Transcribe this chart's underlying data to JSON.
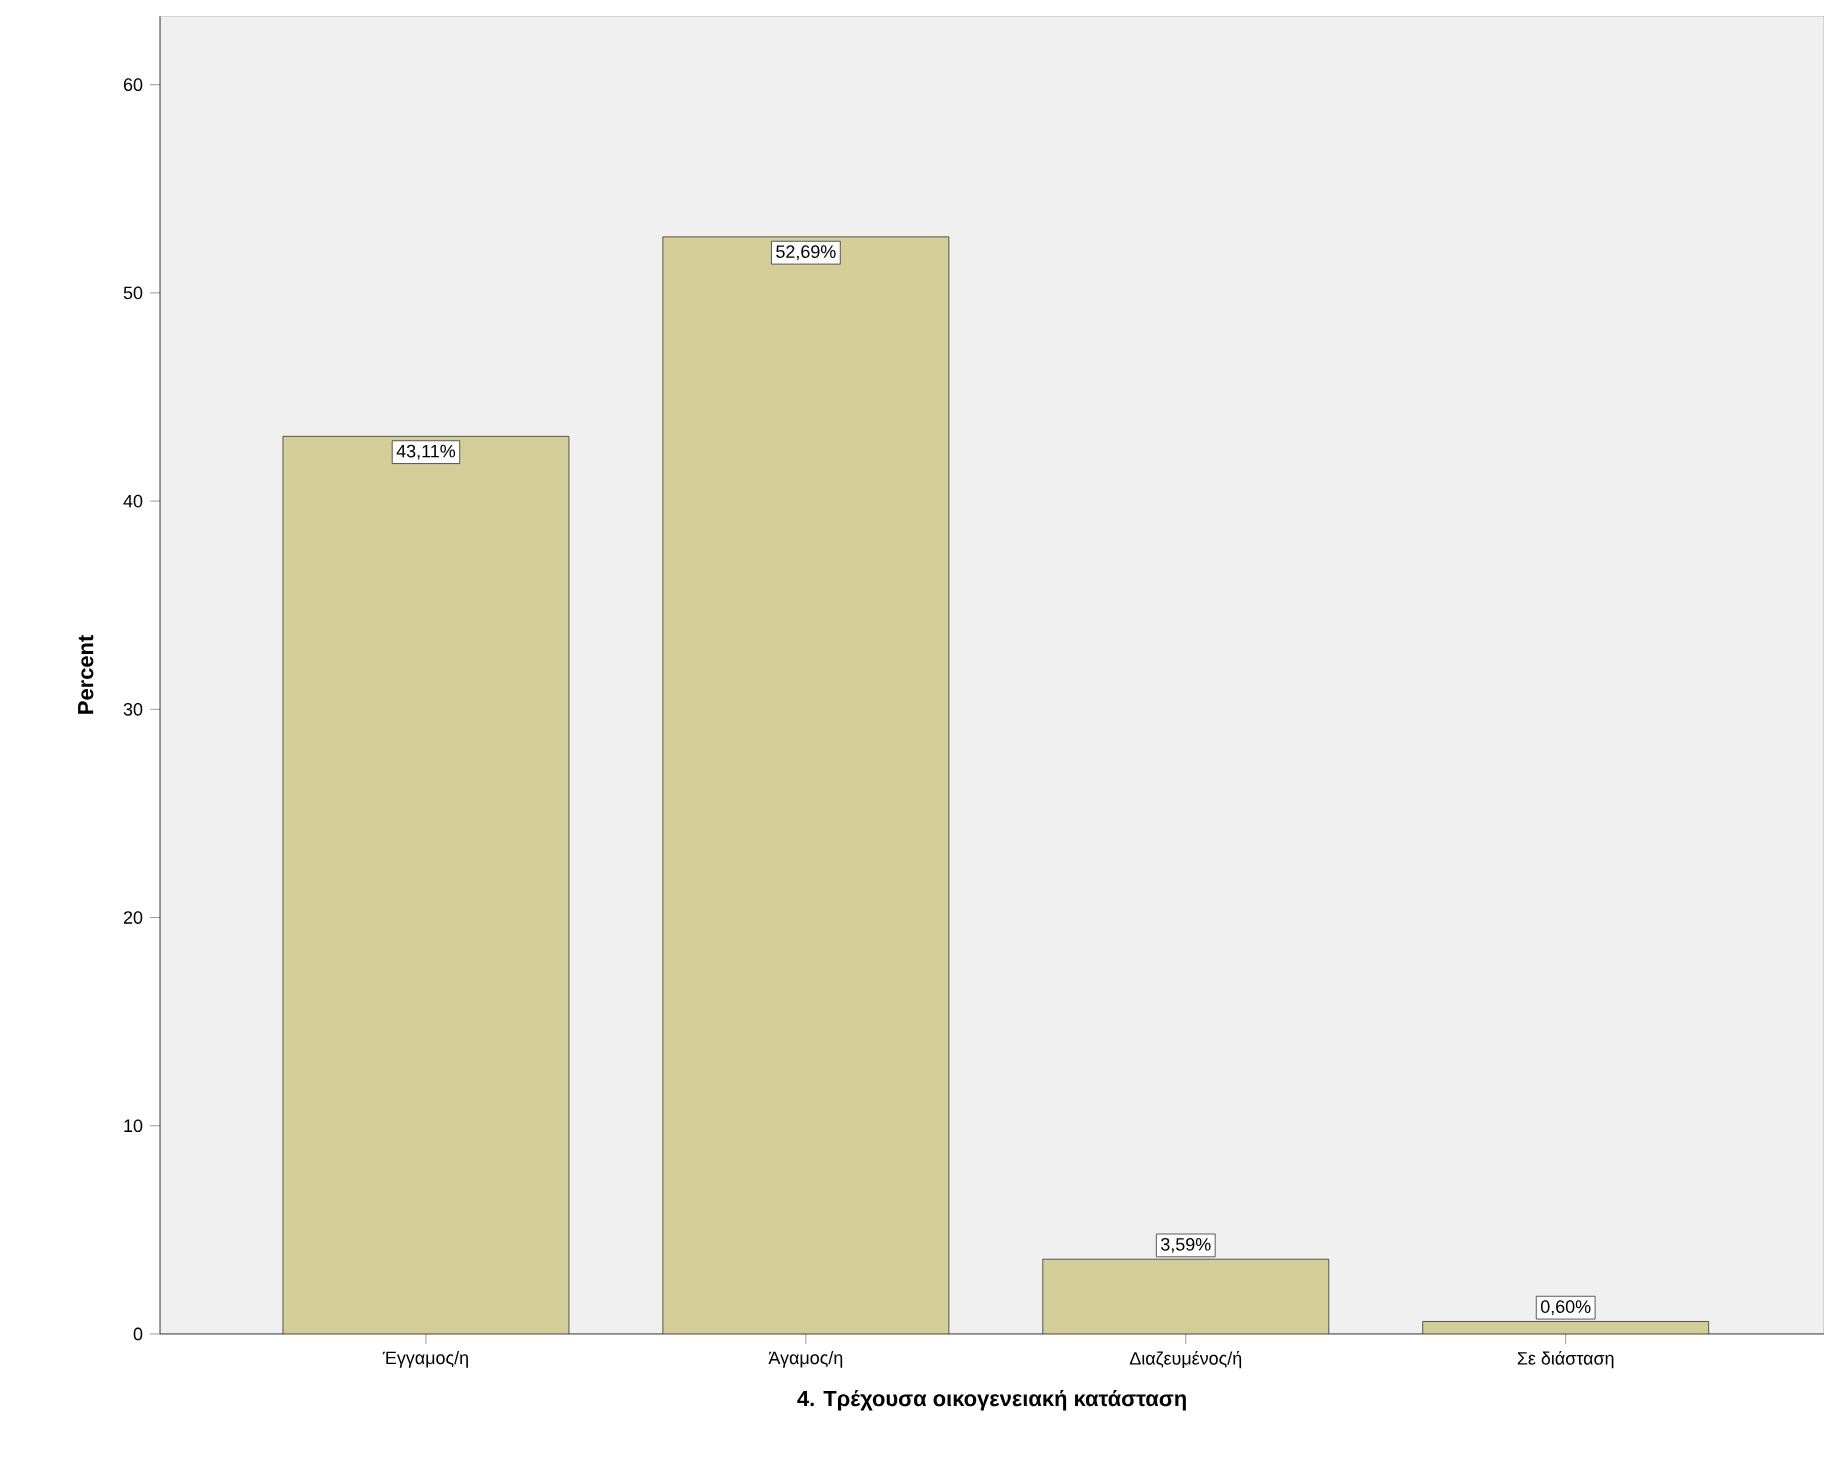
{
  "chart_data": {
    "type": "bar",
    "xlabel": "4. Τρέχουσα οικογενειακή κατάσταση",
    "ylabel": "Percent",
    "categories": [
      "Έγγαμος/η",
      "Άγαμος/η",
      "Διαζευμένος/ή",
      "Σε διάσταση"
    ],
    "values": [
      43.11,
      52.69,
      3.59,
      0.6
    ],
    "value_labels": [
      "43,11%",
      "52,69%",
      "3,59%",
      "0,60%"
    ],
    "color": "#d3ce97",
    "ylim": [
      0,
      63.3
    ],
    "yticks": [
      0,
      10,
      20,
      30,
      40,
      50,
      60
    ],
    "grid": false
  }
}
